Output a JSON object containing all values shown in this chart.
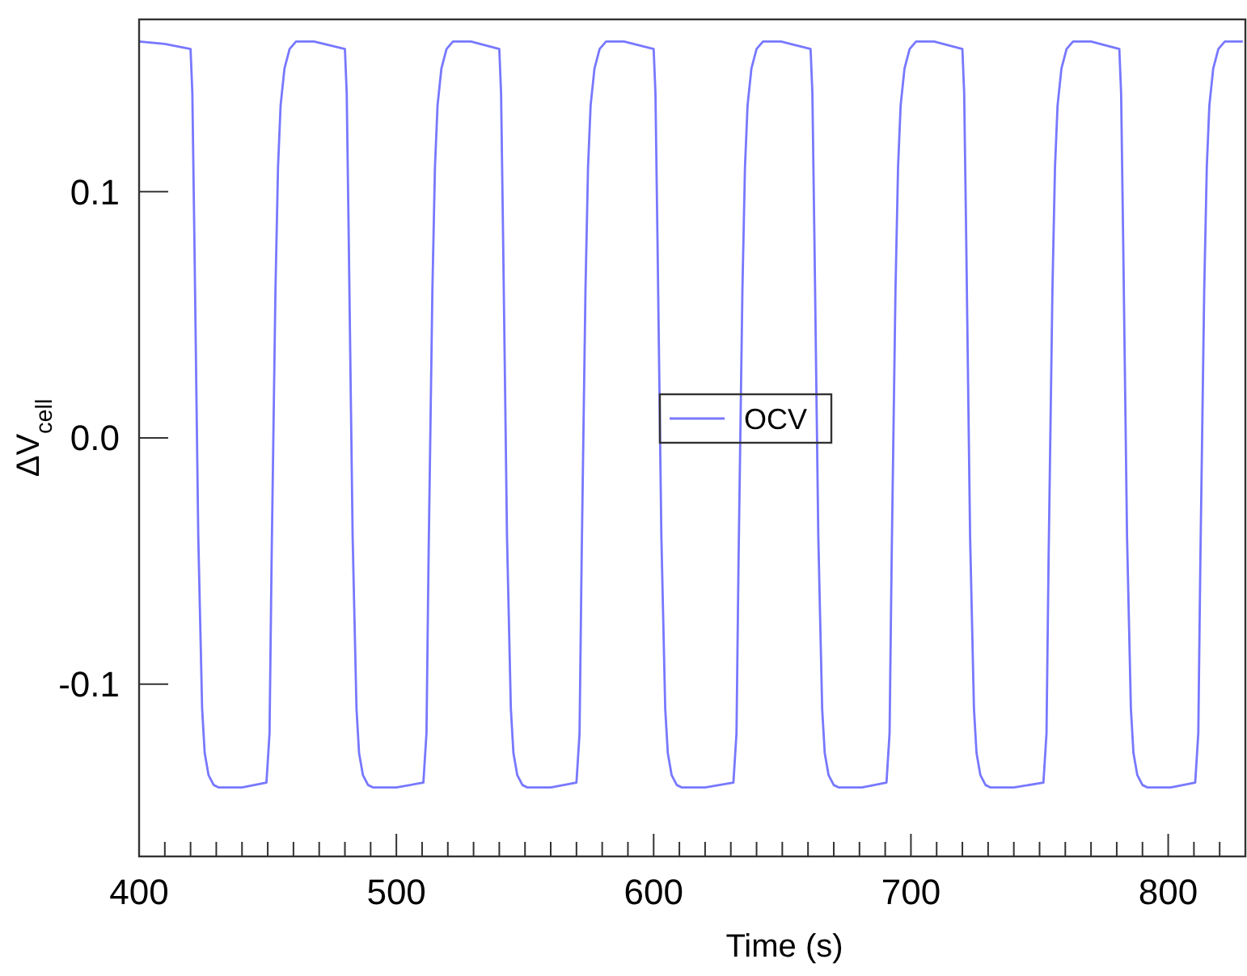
{
  "chart_data": {
    "type": "line",
    "xlabel": "Time (s)",
    "ylabel": "ΔV$_{cell}$",
    "xlim": [
      400,
      830
    ],
    "ylim": [
      -0.17,
      0.17
    ],
    "xticks": [
      400,
      {
        "value": 410,
        "label": null
      },
      {
        "value": 420,
        "label": null
      },
      {
        "value": 430,
        "label": null
      },
      {
        "value": 440,
        "label": null
      },
      {
        "value": 450,
        "label": null
      },
      {
        "value": 460,
        "label": null
      },
      {
        "value": 470,
        "label": null
      },
      {
        "value": 480,
        "label": null
      },
      {
        "value": 490,
        "label": null
      },
      500,
      {
        "value": 510,
        "label": null
      },
      {
        "value": 520,
        "label": null
      },
      {
        "value": 530,
        "label": null
      },
      {
        "value": 540,
        "label": null
      },
      {
        "value": 550,
        "label": null
      },
      {
        "value": 560,
        "label": null
      },
      {
        "value": 570,
        "label": null
      },
      {
        "value": 580,
        "label": null
      },
      {
        "value": 590,
        "label": null
      },
      600,
      {
        "value": 610,
        "label": null
      },
      {
        "value": 620,
        "label": null
      },
      {
        "value": 630,
        "label": null
      },
      {
        "value": 640,
        "label": null
      },
      {
        "value": 650,
        "label": null
      },
      {
        "value": 660,
        "label": null
      },
      {
        "value": 670,
        "label": null
      },
      {
        "value": 680,
        "label": null
      },
      {
        "value": 690,
        "label": null
      },
      700,
      {
        "value": 710,
        "label": null
      },
      {
        "value": 720,
        "label": null
      },
      {
        "value": 730,
        "label": null
      },
      {
        "value": 740,
        "label": null
      },
      {
        "value": 750,
        "label": null
      },
      {
        "value": 760,
        "label": null
      },
      {
        "value": 770,
        "label": null
      },
      {
        "value": 780,
        "label": null
      },
      {
        "value": 790,
        "label": null
      },
      800,
      {
        "value": 810,
        "label": null
      },
      {
        "value": 820,
        "label": null
      }
    ],
    "yticks": [
      -0.1,
      {
        "value": 0,
        "label": "0.0"
      },
      0.1
    ],
    "grid": false,
    "legend": "center",
    "marker": "none",
    "line_style": "solid",
    "series": [
      {
        "name": "OCV",
        "color": "#7878ff",
        "x": [
          400,
          410,
          420,
          420.7,
          421.5,
          423,
          424.5,
          425.5,
          427,
          429,
          431,
          440,
          449.5,
          450.7,
          451.5,
          453,
          454,
          455,
          456.5,
          458.5,
          461,
          468,
          480,
          480.7,
          481.5,
          483,
          484.5,
          485.5,
          487,
          489,
          491,
          500,
          510.5,
          511.7,
          512.5,
          514,
          515,
          516,
          517.5,
          519.5,
          522,
          529,
          540,
          540.7,
          541.5,
          543,
          544.5,
          545.5,
          547,
          549,
          551,
          560,
          570,
          571.2,
          572,
          573.5,
          574.5,
          575.5,
          577,
          579,
          581.5,
          588.5,
          600,
          600.7,
          601.5,
          603,
          604.5,
          605.5,
          607,
          609,
          611,
          620,
          631,
          632.2,
          633,
          634.5,
          635.5,
          636.5,
          638,
          640,
          642.5,
          649.5,
          661,
          661.7,
          662.5,
          664,
          665.5,
          666.5,
          668,
          670,
          672,
          681,
          690.5,
          691.7,
          692.5,
          694,
          695,
          696,
          697.5,
          699.5,
          702,
          709,
          720,
          720.7,
          721.5,
          723,
          724.5,
          725.5,
          727,
          729,
          731,
          740,
          751.5,
          752.7,
          753.5,
          755,
          756,
          757,
          758.5,
          760.5,
          763,
          770,
          781,
          781.7,
          782.5,
          784,
          785.5,
          786.5,
          788,
          790,
          792,
          801,
          810.5,
          811.7,
          812.5,
          814,
          815,
          816,
          817.5,
          819.5,
          822,
          829
        ],
        "values": [
          0.161,
          0.16,
          0.158,
          0.14,
          0.08,
          -0.04,
          -0.11,
          -0.128,
          -0.137,
          -0.141,
          -0.142,
          -0.142,
          -0.14,
          -0.12,
          -0.05,
          0.06,
          0.11,
          0.135,
          0.15,
          0.158,
          0.161,
          0.161,
          0.158,
          0.14,
          0.08,
          -0.04,
          -0.11,
          -0.128,
          -0.137,
          -0.141,
          -0.142,
          -0.142,
          -0.14,
          -0.12,
          -0.05,
          0.06,
          0.11,
          0.135,
          0.15,
          0.158,
          0.161,
          0.161,
          0.158,
          0.14,
          0.08,
          -0.04,
          -0.11,
          -0.128,
          -0.137,
          -0.141,
          -0.142,
          -0.142,
          -0.14,
          -0.12,
          -0.05,
          0.06,
          0.11,
          0.135,
          0.15,
          0.158,
          0.161,
          0.161,
          0.158,
          0.14,
          0.08,
          -0.04,
          -0.11,
          -0.128,
          -0.137,
          -0.141,
          -0.142,
          -0.142,
          -0.14,
          -0.12,
          -0.05,
          0.06,
          0.11,
          0.135,
          0.15,
          0.158,
          0.161,
          0.161,
          0.158,
          0.14,
          0.08,
          -0.04,
          -0.11,
          -0.128,
          -0.137,
          -0.141,
          -0.142,
          -0.142,
          -0.14,
          -0.12,
          -0.05,
          0.06,
          0.11,
          0.135,
          0.15,
          0.158,
          0.161,
          0.161,
          0.158,
          0.14,
          0.08,
          -0.04,
          -0.11,
          -0.128,
          -0.137,
          -0.141,
          -0.142,
          -0.142,
          -0.14,
          -0.12,
          -0.05,
          0.06,
          0.11,
          0.135,
          0.15,
          0.158,
          0.161,
          0.161,
          0.158,
          0.14,
          0.08,
          -0.04,
          -0.11,
          -0.128,
          -0.137,
          -0.141,
          -0.142,
          -0.142,
          -0.14,
          -0.12,
          -0.05,
          0.06,
          0.11,
          0.135,
          0.15,
          0.158,
          0.161,
          0.161
        ]
      }
    ]
  }
}
